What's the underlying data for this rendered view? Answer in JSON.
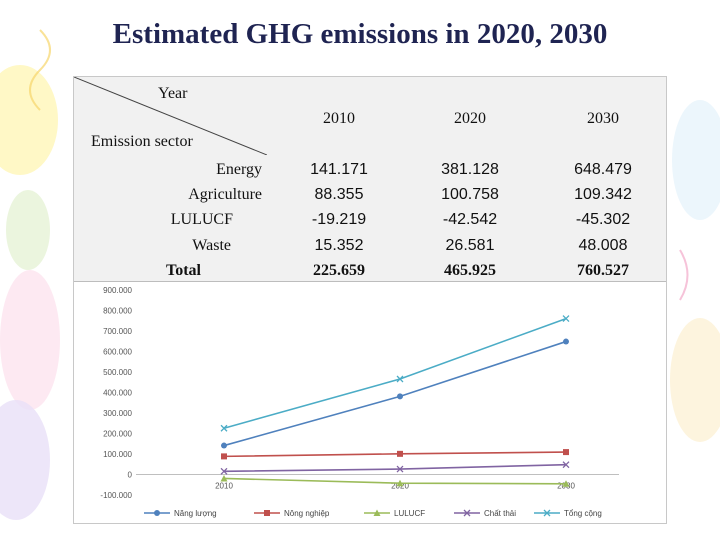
{
  "title": "Estimated GHG emissions in 2020, 2030",
  "table": {
    "corner_top": "Year",
    "corner_bottom": "Emission sector",
    "years": [
      "2010",
      "2020",
      "2030"
    ],
    "rows": [
      {
        "sector": "Energy",
        "values": [
          "141.171",
          "381.128",
          "648.479"
        ]
      },
      {
        "sector": "Agriculture",
        "values": [
          "88.355",
          "100.758",
          "109.342"
        ]
      },
      {
        "sector": "LULUCF",
        "values": [
          "-19.219",
          "-42.542",
          "-45.302"
        ]
      },
      {
        "sector": "Waste",
        "values": [
          "15.352",
          "26.581",
          "48.008"
        ]
      },
      {
        "sector": "Total",
        "values": [
          "225.659",
          "465.925",
          "760.527"
        ]
      }
    ]
  },
  "chart_data": {
    "type": "line",
    "x": [
      "2010",
      "2020",
      "2030"
    ],
    "ylim": [
      -100000,
      900000
    ],
    "yticks": [
      "-100.000",
      "0",
      "100.000",
      "200.000",
      "300.000",
      "400.000",
      "500.000",
      "600.000",
      "700.000",
      "800.000",
      "900.000"
    ],
    "grid": false,
    "legend_position": "bottom",
    "series": [
      {
        "name": "Năng lượng",
        "values": [
          141171,
          381128,
          648479
        ],
        "color": "#4f81bd",
        "marker": "circle"
      },
      {
        "name": "Nông nghiệp",
        "values": [
          88355,
          100758,
          109342
        ],
        "color": "#c0504d",
        "marker": "square"
      },
      {
        "name": "LULUCF",
        "values": [
          -19219,
          -42542,
          -45302
        ],
        "color": "#9bbb59",
        "marker": "triangle"
      },
      {
        "name": "Chất thải",
        "values": [
          15352,
          26581,
          48008
        ],
        "color": "#8064a2",
        "marker": "x"
      },
      {
        "name": "Tổng cộng",
        "values": [
          225659,
          465925,
          760527
        ],
        "color": "#4bacc6",
        "marker": "x"
      }
    ]
  }
}
